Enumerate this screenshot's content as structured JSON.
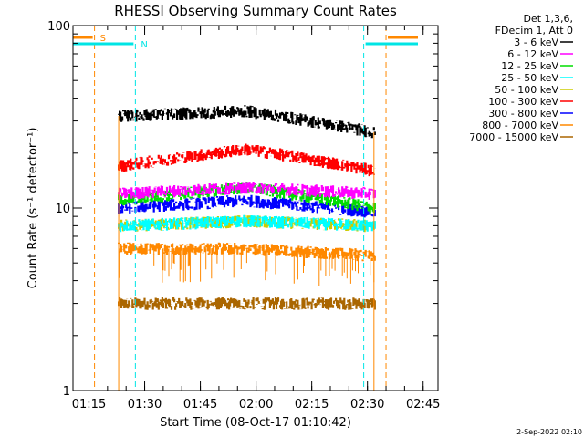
{
  "chart_data": {
    "type": "line",
    "title": "RHESSI Observing Summary Count Rates",
    "xlabel": "Start Time (08-Oct-17 01:10:42)",
    "ylabel": "Count Rate (s⁻¹ detector⁻¹)",
    "y_scale": "log",
    "ylim": [
      1,
      100
    ],
    "y_ticks": [
      {
        "value": 1,
        "label": "1"
      },
      {
        "value": 10,
        "label": "10"
      },
      {
        "value": 100,
        "label": "100"
      }
    ],
    "x_range_minutes": [
      "01:10:42",
      "02:49:00"
    ],
    "x_ticks": [
      {
        "t": "01:15",
        "label": "01:15"
      },
      {
        "t": "01:30",
        "label": "01:30"
      },
      {
        "t": "01:45",
        "label": "01:45"
      },
      {
        "t": "02:00",
        "label": "02:00"
      },
      {
        "t": "02:15",
        "label": "02:15"
      },
      {
        "t": "02:30",
        "label": "02:30"
      },
      {
        "t": "02:45",
        "label": "02:45"
      }
    ],
    "legend_header": [
      "Det 1,3,6,",
      "FDecim 1, Att 0"
    ],
    "legend_position": "top-right, outside plot",
    "data_window": [
      "01:23:00",
      "02:32:00"
    ],
    "series": [
      {
        "name": "3 - 6 keV",
        "color": "#000000",
        "level_start": 32,
        "level_mid": 34,
        "level_end": 26
      },
      {
        "name": "6 - 12 keV",
        "color": "#ff00ff",
        "level_start": 12,
        "level_mid": 13,
        "level_end": 12
      },
      {
        "name": "12 - 25 keV",
        "color": "#00dd00",
        "level_start": 11,
        "level_mid": 13,
        "level_end": 10
      },
      {
        "name": "25 - 50 keV",
        "color": "#00ffff",
        "level_start": 8,
        "level_mid": 8.5,
        "level_end": 8
      },
      {
        "name": "50 - 100 keV",
        "color": "#cccc00",
        "level_start": 8,
        "level_mid": 8.5,
        "level_end": 8
      },
      {
        "name": "100 - 300 keV",
        "color": "#ff0000",
        "level_start": 17,
        "level_mid": 21,
        "level_end": 16
      },
      {
        "name": "300 - 800 keV",
        "color": "#0000ff",
        "level_start": 10,
        "level_mid": 11,
        "level_end": 9.5
      },
      {
        "name": "800 - 7000 keV",
        "color": "#ff8800",
        "level_start": 6,
        "level_mid": 6,
        "level_end": 5.5
      },
      {
        "name": "7000 - 15000 keV",
        "color": "#aa6600",
        "level_start": 3,
        "level_mid": 3,
        "level_end": 3
      }
    ],
    "markers": [
      {
        "label": "S",
        "color": "#ff8800",
        "times": [
          "01:16:30",
          "02:35:00"
        ]
      },
      {
        "label": "N",
        "color": "#00e5e5",
        "times": [
          "01:27:30",
          "02:29:00"
        ]
      }
    ],
    "colors": {
      "axes": "#000000",
      "s_marker": "#ff8800",
      "n_marker": "#00e5e5"
    }
  },
  "footer": {
    "timestamp": "2-Sep-2022 02:10"
  }
}
